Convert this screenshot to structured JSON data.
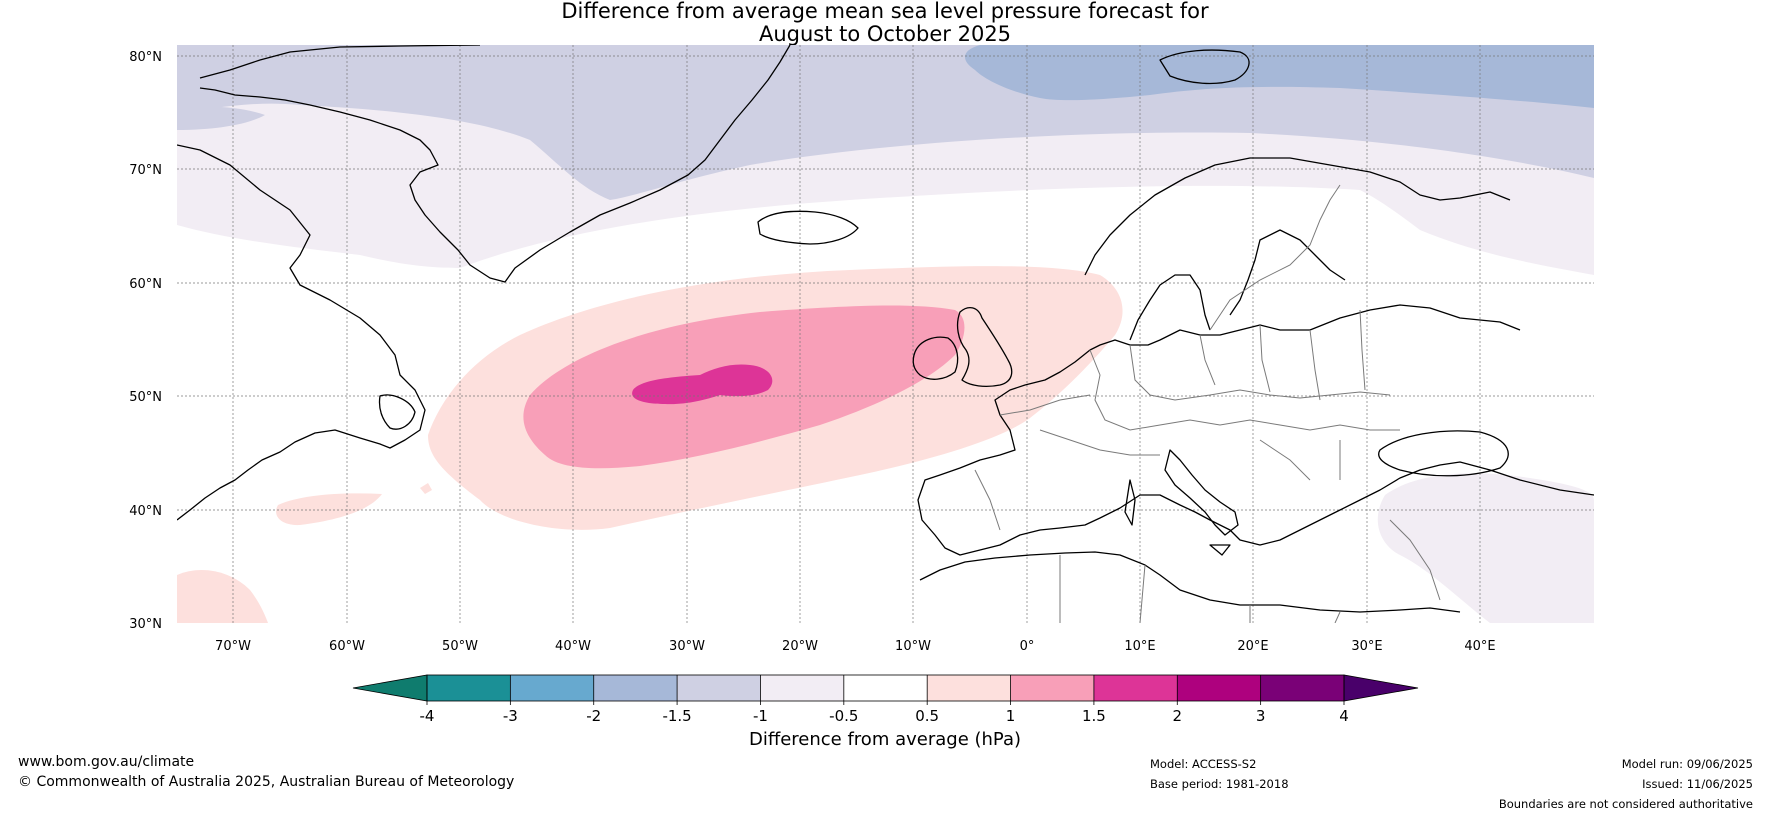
{
  "title": {
    "line1": "Difference from average mean sea level pressure forecast for",
    "line2": "August to October 2025"
  },
  "map": {
    "region": "North Atlantic and Europe",
    "lon_range": [
      -75,
      50
    ],
    "lat_range": [
      30,
      81
    ],
    "lon_ticks": [
      "70°W",
      "60°W",
      "50°W",
      "40°W",
      "30°W",
      "20°W",
      "10°W",
      "0°",
      "10°E",
      "20°E",
      "30°E",
      "40°E"
    ],
    "lat_ticks": [
      "80°N",
      "70°N",
      "60°N",
      "50°N",
      "40°N",
      "30°N"
    ],
    "anomaly_regions": [
      {
        "level": "1.5 to 2 hPa",
        "center": "mid North Atlantic near 51°N, 28°W",
        "color": "#dd3497"
      },
      {
        "level": "1 to 1.5 hPa",
        "center": "North Atlantic 42–57°N, 45°W–5°W",
        "color": "#f89fb8"
      },
      {
        "level": "0.5 to 1 hPa",
        "center": "North Atlantic 38–60°N, 53°W–7°E",
        "color": "#fde0dd"
      },
      {
        "level": "-2 to -1.5 hPa",
        "center": "Arctic north of 75°N, 10°W–50°E",
        "color": "#a6b8d8"
      },
      {
        "level": "-1.5 to -1 hPa",
        "center": "Greenland and Arctic north of 66°N",
        "color": "#cfd0e3"
      },
      {
        "level": "-1 to -0.5 hPa",
        "center": "Labrador Sea, Norwegian Sea, Eastern Mediterranean",
        "color": "#f2edf4"
      }
    ]
  },
  "colorbar": {
    "ticks": [
      "-4",
      "-3",
      "-2",
      "-1.5",
      "-1",
      "-0.5",
      "0.5",
      "1",
      "1.5",
      "2",
      "3",
      "4"
    ],
    "colors": [
      "#0f7c6e",
      "#1b9096",
      "#67a9cf",
      "#a6b8d8",
      "#cfd0e3",
      "#f2edf4",
      "#ffffff",
      "#fde0dd",
      "#f89fb8",
      "#dd3497",
      "#ae017e",
      "#7a0177",
      "#49006a"
    ],
    "label": "Difference from average (hPa)"
  },
  "footer": {
    "website": "www.bom.gov.au/climate",
    "copyright": "© Commonwealth of Australia 2025, Australian Bureau of Meteorology",
    "model": "Model: ACCESS-S2",
    "base_period": "Base period: 1981-2018",
    "model_run": "Model run: 09/06/2025",
    "issued": "Issued: 11/06/2025",
    "disclaimer": "Boundaries are not considered authoritative"
  }
}
